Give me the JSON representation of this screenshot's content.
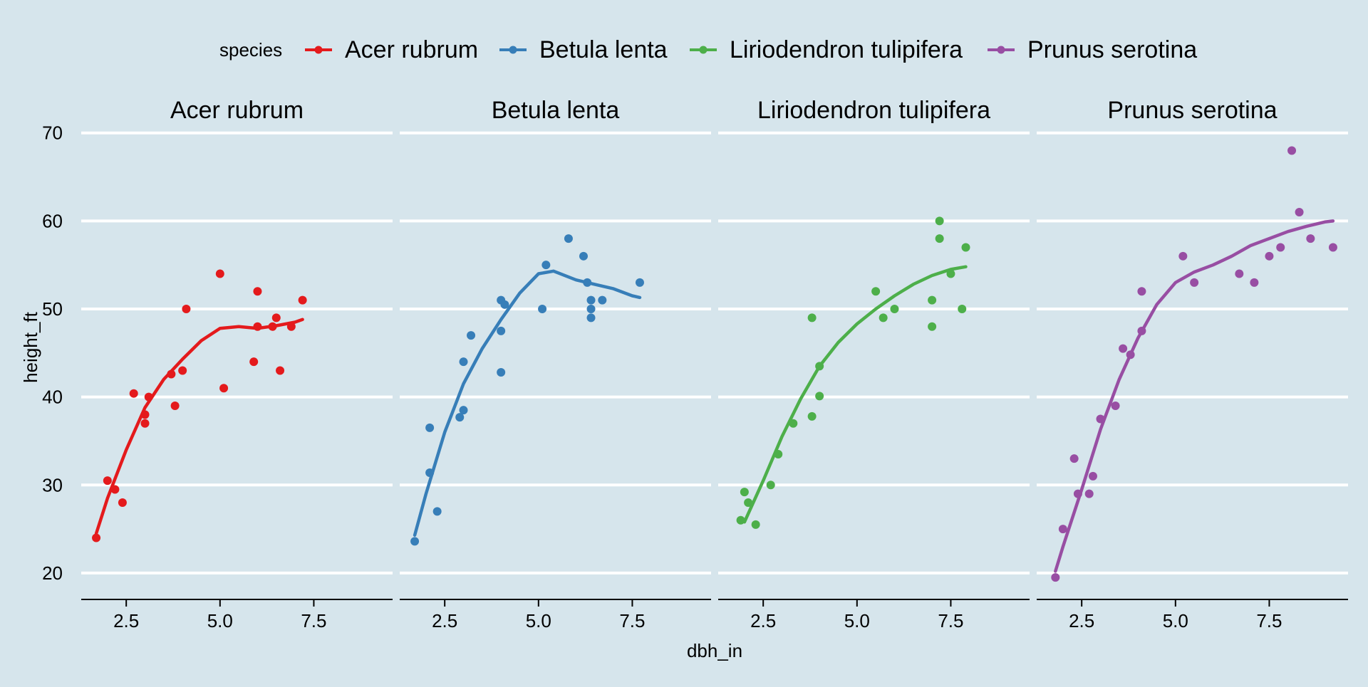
{
  "chart_data": {
    "type": "scatter",
    "facet_by": "species",
    "xlabel": "dbh_in",
    "ylabel": "height_ft",
    "xlim": [
      1.3,
      9.6
    ],
    "ylim": [
      17,
      72
    ],
    "x_ticks": [
      2.5,
      5.0,
      7.5
    ],
    "x_tick_labels": [
      "2.5",
      "5.0",
      "7.5"
    ],
    "y_ticks": [
      20,
      30,
      40,
      50,
      60,
      70
    ],
    "y_tick_labels": [
      "20",
      "30",
      "40",
      "50",
      "60",
      "70"
    ],
    "grid": true,
    "legend": {
      "position": "top",
      "title": "species",
      "entries": [
        "Acer rubrum",
        "Betula lenta",
        "Liriodendron tulipifera",
        "Prunus serotina"
      ]
    },
    "series": [
      {
        "name": "Acer rubrum",
        "color": "#e41a1c",
        "points": [
          [
            1.7,
            24
          ],
          [
            2.0,
            30.5
          ],
          [
            2.2,
            29.5
          ],
          [
            2.4,
            28
          ],
          [
            2.7,
            40.4
          ],
          [
            3.0,
            38
          ],
          [
            3.0,
            37
          ],
          [
            3.1,
            40
          ],
          [
            3.7,
            42.6
          ],
          [
            3.8,
            39
          ],
          [
            4.0,
            43
          ],
          [
            4.1,
            50
          ],
          [
            5.0,
            54
          ],
          [
            5.1,
            41
          ],
          [
            5.9,
            44
          ],
          [
            6.0,
            52
          ],
          [
            6.0,
            48
          ],
          [
            6.4,
            48
          ],
          [
            6.5,
            49
          ],
          [
            6.6,
            43
          ],
          [
            6.9,
            48
          ],
          [
            7.2,
            51
          ]
        ],
        "smooth": [
          [
            1.7,
            24.5
          ],
          [
            2.0,
            28.5
          ],
          [
            2.5,
            34
          ],
          [
            3.0,
            38.8
          ],
          [
            3.5,
            42
          ],
          [
            4.0,
            44.3
          ],
          [
            4.5,
            46.4
          ],
          [
            5.0,
            47.8
          ],
          [
            5.5,
            48.0
          ],
          [
            6.0,
            47.8
          ],
          [
            6.5,
            48.1
          ],
          [
            7.0,
            48.5
          ],
          [
            7.2,
            48.8
          ]
        ]
      },
      {
        "name": "Betula lenta",
        "color": "#377eb8",
        "points": [
          [
            1.7,
            23.6
          ],
          [
            2.1,
            31.4
          ],
          [
            2.1,
            36.5
          ],
          [
            2.3,
            27
          ],
          [
            2.9,
            37.7
          ],
          [
            3.0,
            38.5
          ],
          [
            3.0,
            44
          ],
          [
            3.2,
            47
          ],
          [
            4.0,
            42.8
          ],
          [
            4.0,
            47.5
          ],
          [
            4.0,
            51
          ],
          [
            4.1,
            50.5
          ],
          [
            5.1,
            50
          ],
          [
            5.2,
            55
          ],
          [
            5.8,
            58
          ],
          [
            6.2,
            56
          ],
          [
            6.3,
            53
          ],
          [
            6.4,
            51
          ],
          [
            6.4,
            50
          ],
          [
            6.4,
            49
          ],
          [
            6.7,
            51
          ],
          [
            7.7,
            53
          ]
        ],
        "smooth": [
          [
            1.7,
            24.3
          ],
          [
            2.0,
            29
          ],
          [
            2.5,
            36
          ],
          [
            3.0,
            41.5
          ],
          [
            3.5,
            45.5
          ],
          [
            4.0,
            48.8
          ],
          [
            4.5,
            51.8
          ],
          [
            5.0,
            54.0
          ],
          [
            5.4,
            54.3
          ],
          [
            6.0,
            53.3
          ],
          [
            6.5,
            52.8
          ],
          [
            7.0,
            52.3
          ],
          [
            7.5,
            51.5
          ],
          [
            7.7,
            51.3
          ]
        ]
      },
      {
        "name": "Liriodendron tulipifera",
        "color": "#4daf4a",
        "points": [
          [
            1.9,
            26
          ],
          [
            2.0,
            29.2
          ],
          [
            2.1,
            28
          ],
          [
            2.3,
            25.5
          ],
          [
            2.7,
            30
          ],
          [
            2.9,
            33.5
          ],
          [
            3.3,
            37
          ],
          [
            3.8,
            37.8
          ],
          [
            3.8,
            49
          ],
          [
            4.0,
            40.1
          ],
          [
            4.0,
            43.5
          ],
          [
            5.5,
            52
          ],
          [
            5.7,
            49
          ],
          [
            6.0,
            50
          ],
          [
            7.0,
            48
          ],
          [
            7.0,
            51
          ],
          [
            7.2,
            58
          ],
          [
            7.2,
            60
          ],
          [
            7.5,
            54
          ],
          [
            7.8,
            50
          ],
          [
            7.9,
            57
          ]
        ],
        "smooth": [
          [
            2.0,
            25.8
          ],
          [
            2.5,
            30.5
          ],
          [
            3.0,
            35.5
          ],
          [
            3.5,
            39.8
          ],
          [
            4.0,
            43.5
          ],
          [
            4.5,
            46.2
          ],
          [
            5.0,
            48.3
          ],
          [
            5.5,
            50.0
          ],
          [
            6.0,
            51.5
          ],
          [
            6.5,
            52.8
          ],
          [
            7.0,
            53.8
          ],
          [
            7.5,
            54.5
          ],
          [
            7.9,
            54.8
          ]
        ]
      },
      {
        "name": "Prunus serotina",
        "color": "#984ea3",
        "points": [
          [
            1.8,
            19.5
          ],
          [
            2.0,
            25
          ],
          [
            2.3,
            33
          ],
          [
            2.4,
            29
          ],
          [
            2.7,
            29
          ],
          [
            2.8,
            31
          ],
          [
            3.0,
            37.5
          ],
          [
            3.4,
            39
          ],
          [
            3.6,
            45.5
          ],
          [
            3.8,
            44.8
          ],
          [
            4.1,
            47.5
          ],
          [
            4.1,
            52
          ],
          [
            5.2,
            56
          ],
          [
            5.5,
            53
          ],
          [
            6.7,
            54
          ],
          [
            7.1,
            53
          ],
          [
            7.5,
            56
          ],
          [
            7.8,
            57
          ],
          [
            8.1,
            68
          ],
          [
            8.3,
            61
          ],
          [
            8.6,
            58
          ],
          [
            9.2,
            57
          ]
        ],
        "smooth": [
          [
            1.8,
            20.2
          ],
          [
            2.0,
            23
          ],
          [
            2.5,
            29.5
          ],
          [
            3.0,
            36.3
          ],
          [
            3.5,
            42
          ],
          [
            4.0,
            46.7
          ],
          [
            4.5,
            50.5
          ],
          [
            5.0,
            53
          ],
          [
            5.5,
            54.2
          ],
          [
            6.0,
            55
          ],
          [
            6.5,
            56
          ],
          [
            7.0,
            57.2
          ],
          [
            7.5,
            58
          ],
          [
            8.0,
            58.8
          ],
          [
            8.5,
            59.4
          ],
          [
            9.0,
            59.9
          ],
          [
            9.2,
            60
          ]
        ]
      }
    ]
  }
}
